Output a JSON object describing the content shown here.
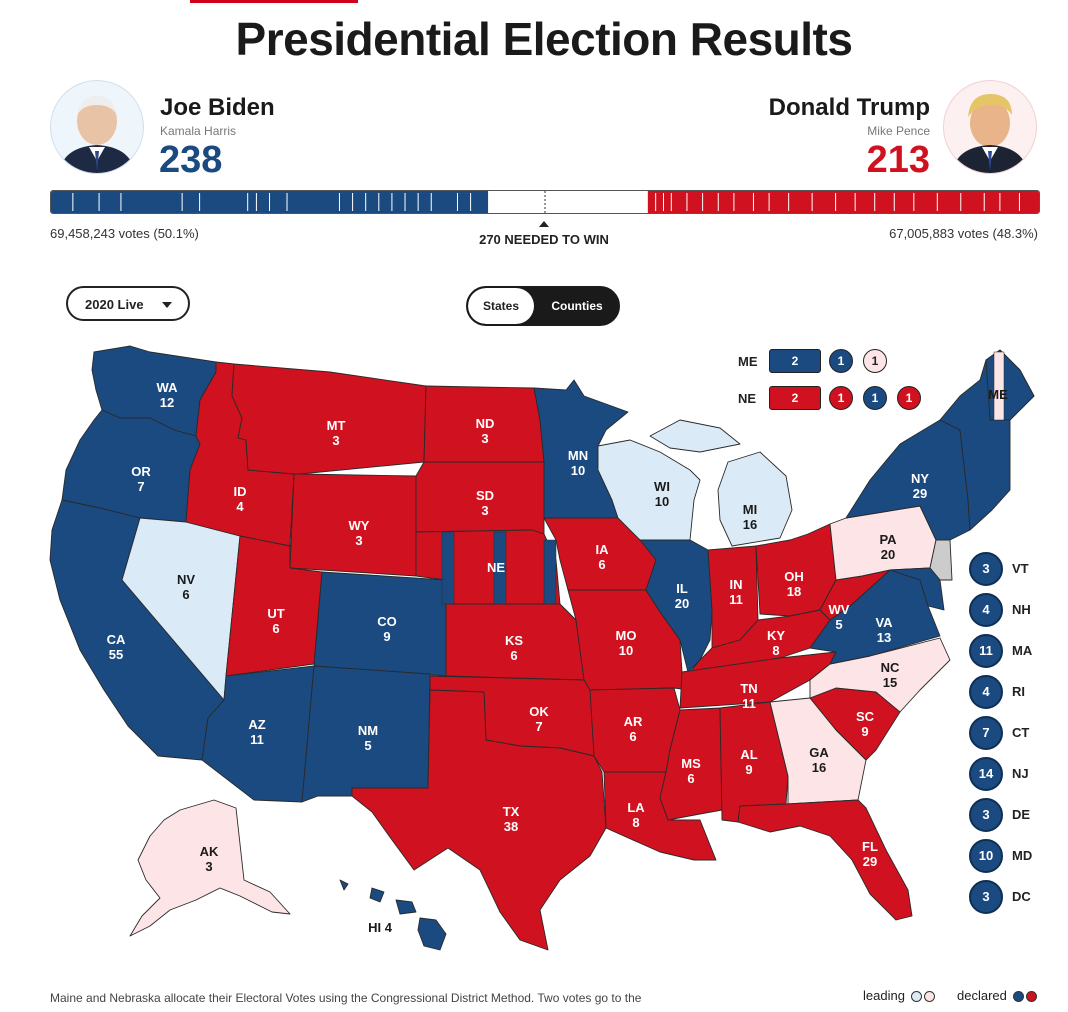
{
  "page_title": "Presidential Election Results",
  "candidates": {
    "dem": {
      "name": "Joe Biden",
      "running_mate": "Kamala Harris",
      "electoral_votes": "238",
      "popular_votes": "69,458,243 votes (50.1%)",
      "color": "#1a4a80",
      "leaning_color": "#dbeaf7"
    },
    "rep": {
      "name": "Donald Trump",
      "running_mate": "Mike Pence",
      "electoral_votes": "213",
      "popular_votes": "67,005,883 votes (48.3%)",
      "color": "#d0111f",
      "leaning_color": "#fde4e6"
    }
  },
  "needed_to_win": "270 NEEDED TO WIN",
  "controls": {
    "year_select": "2020 Live",
    "view_states": "States",
    "view_counties": "Counties"
  },
  "states": [
    {
      "abbr": "WA",
      "ev": "12",
      "status": "dem"
    },
    {
      "abbr": "OR",
      "ev": "7",
      "status": "dem"
    },
    {
      "abbr": "CA",
      "ev": "55",
      "status": "dem"
    },
    {
      "abbr": "NV",
      "ev": "6",
      "status": "dem-leading"
    },
    {
      "abbr": "ID",
      "ev": "4",
      "status": "rep"
    },
    {
      "abbr": "MT",
      "ev": "3",
      "status": "rep"
    },
    {
      "abbr": "WY",
      "ev": "3",
      "status": "rep"
    },
    {
      "abbr": "UT",
      "ev": "6",
      "status": "rep"
    },
    {
      "abbr": "CO",
      "ev": "9",
      "status": "dem"
    },
    {
      "abbr": "AZ",
      "ev": "11",
      "status": "dem"
    },
    {
      "abbr": "NM",
      "ev": "5",
      "status": "dem"
    },
    {
      "abbr": "ND",
      "ev": "3",
      "status": "rep"
    },
    {
      "abbr": "SD",
      "ev": "3",
      "status": "rep"
    },
    {
      "abbr": "NE",
      "ev": "",
      "status": "split"
    },
    {
      "abbr": "KS",
      "ev": "6",
      "status": "rep"
    },
    {
      "abbr": "OK",
      "ev": "7",
      "status": "rep"
    },
    {
      "abbr": "TX",
      "ev": "38",
      "status": "rep"
    },
    {
      "abbr": "MN",
      "ev": "10",
      "status": "dem"
    },
    {
      "abbr": "IA",
      "ev": "6",
      "status": "rep"
    },
    {
      "abbr": "MO",
      "ev": "10",
      "status": "rep"
    },
    {
      "abbr": "AR",
      "ev": "6",
      "status": "rep"
    },
    {
      "abbr": "LA",
      "ev": "8",
      "status": "rep"
    },
    {
      "abbr": "WI",
      "ev": "10",
      "status": "dem-leading"
    },
    {
      "abbr": "IL",
      "ev": "20",
      "status": "dem"
    },
    {
      "abbr": "MI",
      "ev": "16",
      "status": "dem-leading"
    },
    {
      "abbr": "IN",
      "ev": "11",
      "status": "rep"
    },
    {
      "abbr": "OH",
      "ev": "18",
      "status": "rep"
    },
    {
      "abbr": "KY",
      "ev": "8",
      "status": "rep"
    },
    {
      "abbr": "TN",
      "ev": "11",
      "status": "rep"
    },
    {
      "abbr": "MS",
      "ev": "6",
      "status": "rep"
    },
    {
      "abbr": "AL",
      "ev": "9",
      "status": "rep"
    },
    {
      "abbr": "GA",
      "ev": "16",
      "status": "rep-leading"
    },
    {
      "abbr": "FL",
      "ev": "29",
      "status": "rep"
    },
    {
      "abbr": "SC",
      "ev": "9",
      "status": "rep"
    },
    {
      "abbr": "NC",
      "ev": "15",
      "status": "rep-leading"
    },
    {
      "abbr": "VA",
      "ev": "13",
      "status": "dem"
    },
    {
      "abbr": "WV",
      "ev": "5",
      "status": "rep"
    },
    {
      "abbr": "PA",
      "ev": "20",
      "status": "rep-leading"
    },
    {
      "abbr": "NY",
      "ev": "29",
      "status": "dem"
    },
    {
      "abbr": "ME",
      "ev": "",
      "status": "split"
    },
    {
      "abbr": "AK",
      "ev": "3",
      "status": "rep-leading"
    },
    {
      "abbr": "HI",
      "ev": "4",
      "status": "dem"
    }
  ],
  "hawaii_label": "HI 4",
  "split_states": [
    {
      "abbr": "ME",
      "at_large": "2",
      "at_large_status": "dem",
      "districts": [
        {
          "ev": "1",
          "status": "dem"
        },
        {
          "ev": "1",
          "status": "rep-leading"
        }
      ]
    },
    {
      "abbr": "NE",
      "at_large": "2",
      "at_large_status": "rep",
      "districts": [
        {
          "ev": "1",
          "status": "rep"
        },
        {
          "ev": "1",
          "status": "dem"
        },
        {
          "ev": "1",
          "status": "rep"
        }
      ]
    }
  ],
  "small_states": [
    {
      "abbr": "VT",
      "ev": "3"
    },
    {
      "abbr": "NH",
      "ev": "4"
    },
    {
      "abbr": "MA",
      "ev": "11"
    },
    {
      "abbr": "RI",
      "ev": "4"
    },
    {
      "abbr": "CT",
      "ev": "7"
    },
    {
      "abbr": "NJ",
      "ev": "14"
    },
    {
      "abbr": "DE",
      "ev": "3"
    },
    {
      "abbr": "MD",
      "ev": "10"
    },
    {
      "abbr": "DC",
      "ev": "3"
    }
  ],
  "footnote": "Maine and Nebraska allocate their Electoral Votes using the Congressional District Method. Two votes go to the",
  "legend": {
    "leading": "leading",
    "declared": "declared"
  },
  "colors": {
    "dem": "#1a4a80",
    "rep": "#d0111f",
    "dem-leading": "#dbeaf7",
    "rep-leading": "#fde4e6",
    "border": "#333333"
  }
}
